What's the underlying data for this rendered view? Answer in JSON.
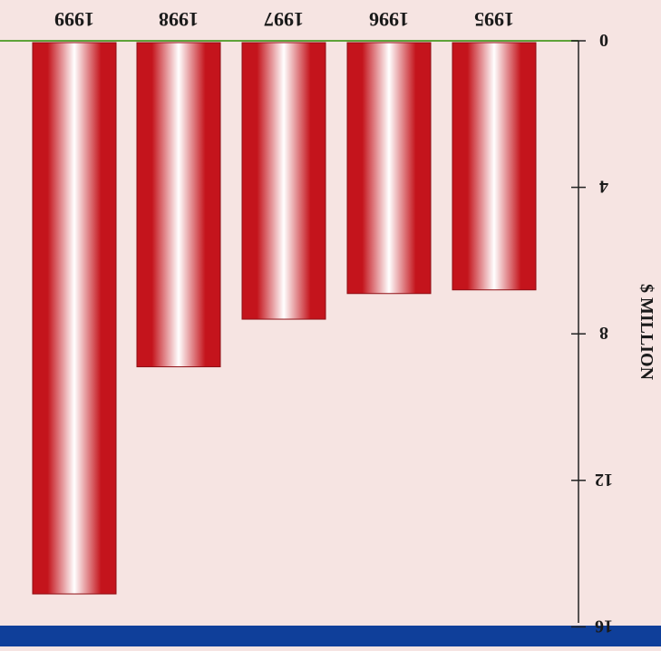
{
  "chart_data": {
    "type": "bar",
    "orientation": "image rotated 180 degrees",
    "categories": [
      "1995",
      "1996",
      "1997",
      "1998",
      "1999"
    ],
    "values": [
      6.8,
      6.9,
      7.6,
      8.9,
      15.1
    ],
    "ylabel": "$ MILLION",
    "yticks": [
      "0",
      "4",
      "8",
      "12",
      "16"
    ],
    "ylim": [
      0,
      16
    ],
    "grid": false
  },
  "colors": {
    "background": "#f6e4e2",
    "bar_edge": "#c4141c",
    "bar_center": "#ffffff",
    "baseline": "#5fa33a",
    "bottom_band": "#0f3f9a",
    "axis": "#222222"
  }
}
